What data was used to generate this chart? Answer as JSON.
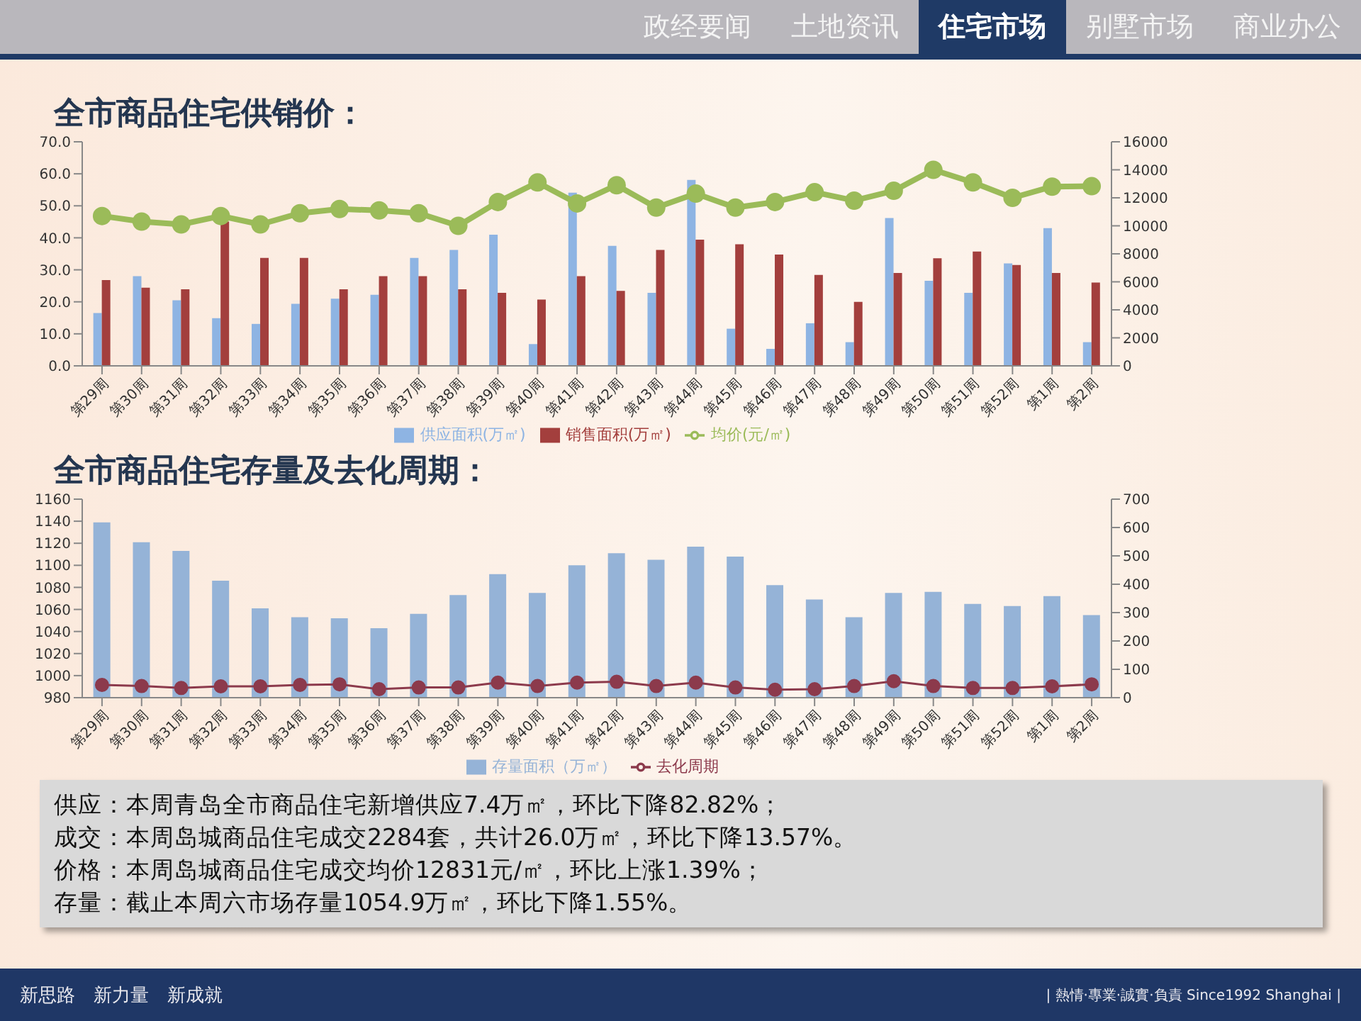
{
  "chart_data": [
    {
      "type": "bar",
      "title": "全市商品住宅供销价：",
      "categories": [
        "第29周",
        "第30周",
        "第31周",
        "第32周",
        "第33周",
        "第34周",
        "第35周",
        "第36周",
        "第37周",
        "第38周",
        "第39周",
        "第40周",
        "第41周",
        "第42周",
        "第43周",
        "第44周",
        "第45周",
        "第46周",
        "第47周",
        "第48周",
        "第49周",
        "第50周",
        "第51周",
        "第52周",
        "第1周",
        "第2周"
      ],
      "series": [
        {
          "name": "供应面积(万㎡)",
          "type": "bar",
          "color": "#8eb4e3",
          "values": [
            16.5,
            28,
            20.5,
            14.9,
            13.1,
            19.4,
            21,
            22.2,
            33.7,
            36.2,
            41,
            6.8,
            54.1,
            37.5,
            22.8,
            58.1,
            11.6,
            5.3,
            13.3,
            7.4,
            46.2,
            26.6,
            22.8,
            32,
            43,
            7.4
          ]
        },
        {
          "name": "销售面积(万㎡)",
          "type": "bar",
          "color": "#a33f3d",
          "values": [
            26.8,
            24.4,
            23.9,
            45.1,
            33.7,
            33.7,
            23.9,
            28,
            28,
            23.9,
            22.8,
            20.7,
            28,
            23.4,
            36.2,
            39.4,
            38,
            34.8,
            28.4,
            20,
            29,
            33.6,
            35.7,
            31.5,
            29,
            26
          ]
        },
        {
          "name": "均价(元/㎡)",
          "type": "line",
          "axis": "y2",
          "color": "#9bbb59",
          "marker": "circle",
          "values": [
            10700,
            10300,
            10100,
            10700,
            10100,
            10900,
            11200,
            11100,
            10900,
            10000,
            11700,
            13100,
            11600,
            12900,
            11300,
            12300,
            11300,
            11700,
            12400,
            11800,
            12500,
            14000,
            13100,
            12000,
            12800,
            12831
          ]
        }
      ],
      "ylim": [
        0,
        70
      ],
      "yticks": [
        {
          "value": 0,
          "label": "0.0"
        },
        {
          "value": 10,
          "label": "10.0"
        },
        {
          "value": 20,
          "label": "20.0"
        },
        {
          "value": 30,
          "label": "30.0"
        },
        {
          "value": 40,
          "label": "40.0"
        },
        {
          "value": 50,
          "label": "50.0"
        },
        {
          "value": 60,
          "label": "60.0"
        },
        {
          "value": 70,
          "label": "70.0"
        }
      ],
      "y2lim": [
        0,
        16000
      ],
      "y2ticks": [
        0,
        2000,
        4000,
        6000,
        8000,
        10000,
        12000,
        14000,
        16000
      ],
      "legend": "bottom"
    },
    {
      "type": "bar",
      "title": "全市商品住宅存量及去化周期：",
      "categories": [
        "第29周",
        "第30周",
        "第31周",
        "第32周",
        "第33周",
        "第34周",
        "第35周",
        "第36周",
        "第37周",
        "第38周",
        "第39周",
        "第40周",
        "第41周",
        "第42周",
        "第43周",
        "第44周",
        "第45周",
        "第46周",
        "第47周",
        "第48周",
        "第49周",
        "第50周",
        "第51周",
        "第52周",
        "第1周",
        "第2周"
      ],
      "series": [
        {
          "name": "存量面积（万㎡）",
          "type": "bar",
          "color": "#95b3d7",
          "values": [
            1139,
            1121,
            1113,
            1086,
            1061,
            1053,
            1052,
            1043,
            1056,
            1073,
            1092,
            1075,
            1100,
            1111,
            1105,
            1117,
            1108,
            1082,
            1069,
            1053,
            1075,
            1076,
            1065,
            1063,
            1072,
            1054.9
          ]
        },
        {
          "name": "去化周期",
          "type": "line",
          "axis": "y2",
          "color": "#8c3a4c",
          "marker": "circle",
          "values": [
            45,
            41,
            34,
            40,
            40,
            45,
            47,
            30,
            36,
            36,
            53,
            41,
            53,
            56,
            41,
            53,
            36,
            28,
            30,
            41,
            58,
            41,
            34,
            34,
            40,
            47
          ]
        }
      ],
      "ylim": [
        980,
        1160
      ],
      "yticks": [
        980,
        1000,
        1020,
        1040,
        1060,
        1080,
        1100,
        1120,
        1140,
        1160
      ],
      "y2lim": [
        0,
        700
      ],
      "y2ticks": [
        0,
        100,
        200,
        300,
        400,
        500,
        600,
        700
      ],
      "legend": "bottom"
    },
    {
      "type": "other",
      "annotations": [
        "政经要闻",
        "土地资讯",
        "住宅市场",
        "别墅市场",
        "商业办公",
        "供应：本周青岛全市商品住宅新增供应7.4万㎡，环比下降82.82%；",
        "成交：本周岛城商品住宅成交2284套，共计26.0万㎡，环比下降13.57%。",
        "价格：本周岛城商品住宅成交均价12831元/㎡，环比上涨1.39%；",
        "存量：截止本周六市场存量1054.9万㎡，环比下降1.55%。",
        "新思路　新力量　新成就",
        "| 熱情·專業·誠實·負責 Since1992 Shanghai |"
      ]
    }
  ]
}
